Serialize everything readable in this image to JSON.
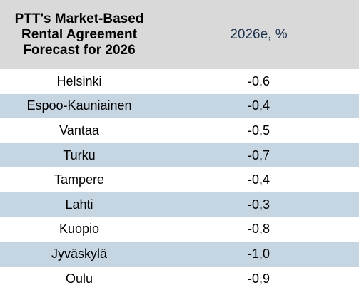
{
  "chart_data": {
    "type": "table",
    "header": {
      "title_lines": [
        "PTT's Market-Based",
        "Rental Agreement",
        "Forecast for 2026"
      ],
      "value_column": "2026e, %"
    },
    "rows": [
      {
        "city": "Helsinki",
        "value": "-0,6"
      },
      {
        "city": "Espoo-Kauniainen",
        "value": "-0,4"
      },
      {
        "city": "Vantaa",
        "value": "-0,5"
      },
      {
        "city": "Turku",
        "value": "-0,7"
      },
      {
        "city": "Tampere",
        "value": "-0,4"
      },
      {
        "city": "Lahti",
        "value": "-0,3"
      },
      {
        "city": "Kuopio",
        "value": "-0,8"
      },
      {
        "city": "Jyväskylä",
        "value": "-1,0"
      },
      {
        "city": "Oulu",
        "value": "-0,9"
      }
    ],
    "colors": {
      "header_background": "#d9d9d9",
      "stripe_background": "#c6d5e2",
      "row_background": "#ffffff",
      "value_header_text": "#1f3550"
    }
  }
}
